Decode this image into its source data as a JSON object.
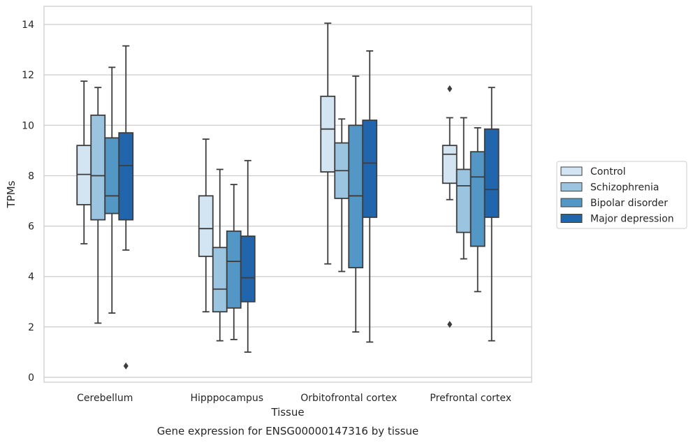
{
  "chart_data": {
    "type": "box",
    "title": "",
    "caption": "Gene expression for ENSG00000147316 by tissue",
    "xlabel": "Tissue",
    "ylabel": "TPMs",
    "ylim": [
      -0.2,
      14.75
    ],
    "yticks": [
      0,
      2,
      4,
      6,
      8,
      10,
      12,
      14
    ],
    "grid": "horizontal",
    "legend_position": "right",
    "categories": [
      "Cerebellum",
      "Hipppocampus",
      "Orbitofrontal cortex",
      "Prefrontal cortex"
    ],
    "series": [
      {
        "name": "Control",
        "color": "#d3e4f3",
        "boxes": [
          {
            "whisker_low": 5.3,
            "q1": 6.85,
            "median": 8.05,
            "q3": 9.2,
            "whisker_high": 11.75,
            "outliers": []
          },
          {
            "whisker_low": 2.6,
            "q1": 4.8,
            "median": 5.9,
            "q3": 7.2,
            "whisker_high": 9.45,
            "outliers": []
          },
          {
            "whisker_low": 4.5,
            "q1": 8.15,
            "median": 9.85,
            "q3": 11.15,
            "whisker_high": 14.05,
            "outliers": []
          },
          {
            "whisker_low": 7.05,
            "q1": 7.7,
            "median": 8.85,
            "q3": 9.2,
            "whisker_high": 10.3,
            "outliers": [
              11.45,
              2.1
            ]
          }
        ]
      },
      {
        "name": "Schizophrenia",
        "color": "#9ac4df",
        "boxes": [
          {
            "whisker_low": 2.15,
            "q1": 6.25,
            "median": 8.0,
            "q3": 10.4,
            "whisker_high": 11.5,
            "outliers": []
          },
          {
            "whisker_low": 1.45,
            "q1": 2.6,
            "median": 3.5,
            "q3": 5.15,
            "whisker_high": 8.25,
            "outliers": []
          },
          {
            "whisker_low": 4.2,
            "q1": 7.1,
            "median": 8.2,
            "q3": 9.3,
            "whisker_high": 10.25,
            "outliers": []
          },
          {
            "whisker_low": 4.7,
            "q1": 5.75,
            "median": 7.6,
            "q3": 8.25,
            "whisker_high": 10.3,
            "outliers": []
          }
        ]
      },
      {
        "name": "Bipolar disorder",
        "color": "#5297c6",
        "boxes": [
          {
            "whisker_low": 2.55,
            "q1": 6.5,
            "median": 7.2,
            "q3": 9.5,
            "whisker_high": 12.3,
            "outliers": []
          },
          {
            "whisker_low": 1.5,
            "q1": 2.75,
            "median": 4.6,
            "q3": 5.8,
            "whisker_high": 7.65,
            "outliers": []
          },
          {
            "whisker_low": 1.8,
            "q1": 4.35,
            "median": 7.2,
            "q3": 10.0,
            "whisker_high": 11.95,
            "outliers": []
          },
          {
            "whisker_low": 3.4,
            "q1": 5.2,
            "median": 7.95,
            "q3": 8.95,
            "whisker_high": 9.9,
            "outliers": []
          }
        ]
      },
      {
        "name": "Major depression",
        "color": "#2166ac",
        "boxes": [
          {
            "whisker_low": 5.05,
            "q1": 6.25,
            "median": 8.4,
            "q3": 9.7,
            "whisker_high": 13.15,
            "outliers": [
              0.45
            ]
          },
          {
            "whisker_low": 1.0,
            "q1": 3.0,
            "median": 3.95,
            "q3": 5.6,
            "whisker_high": 8.6,
            "outliers": []
          },
          {
            "whisker_low": 1.4,
            "q1": 6.35,
            "median": 8.5,
            "q3": 10.2,
            "whisker_high": 12.95,
            "outliers": []
          },
          {
            "whisker_low": 1.45,
            "q1": 6.35,
            "median": 7.45,
            "q3": 9.85,
            "whisker_high": 11.5,
            "outliers": []
          }
        ]
      }
    ]
  }
}
